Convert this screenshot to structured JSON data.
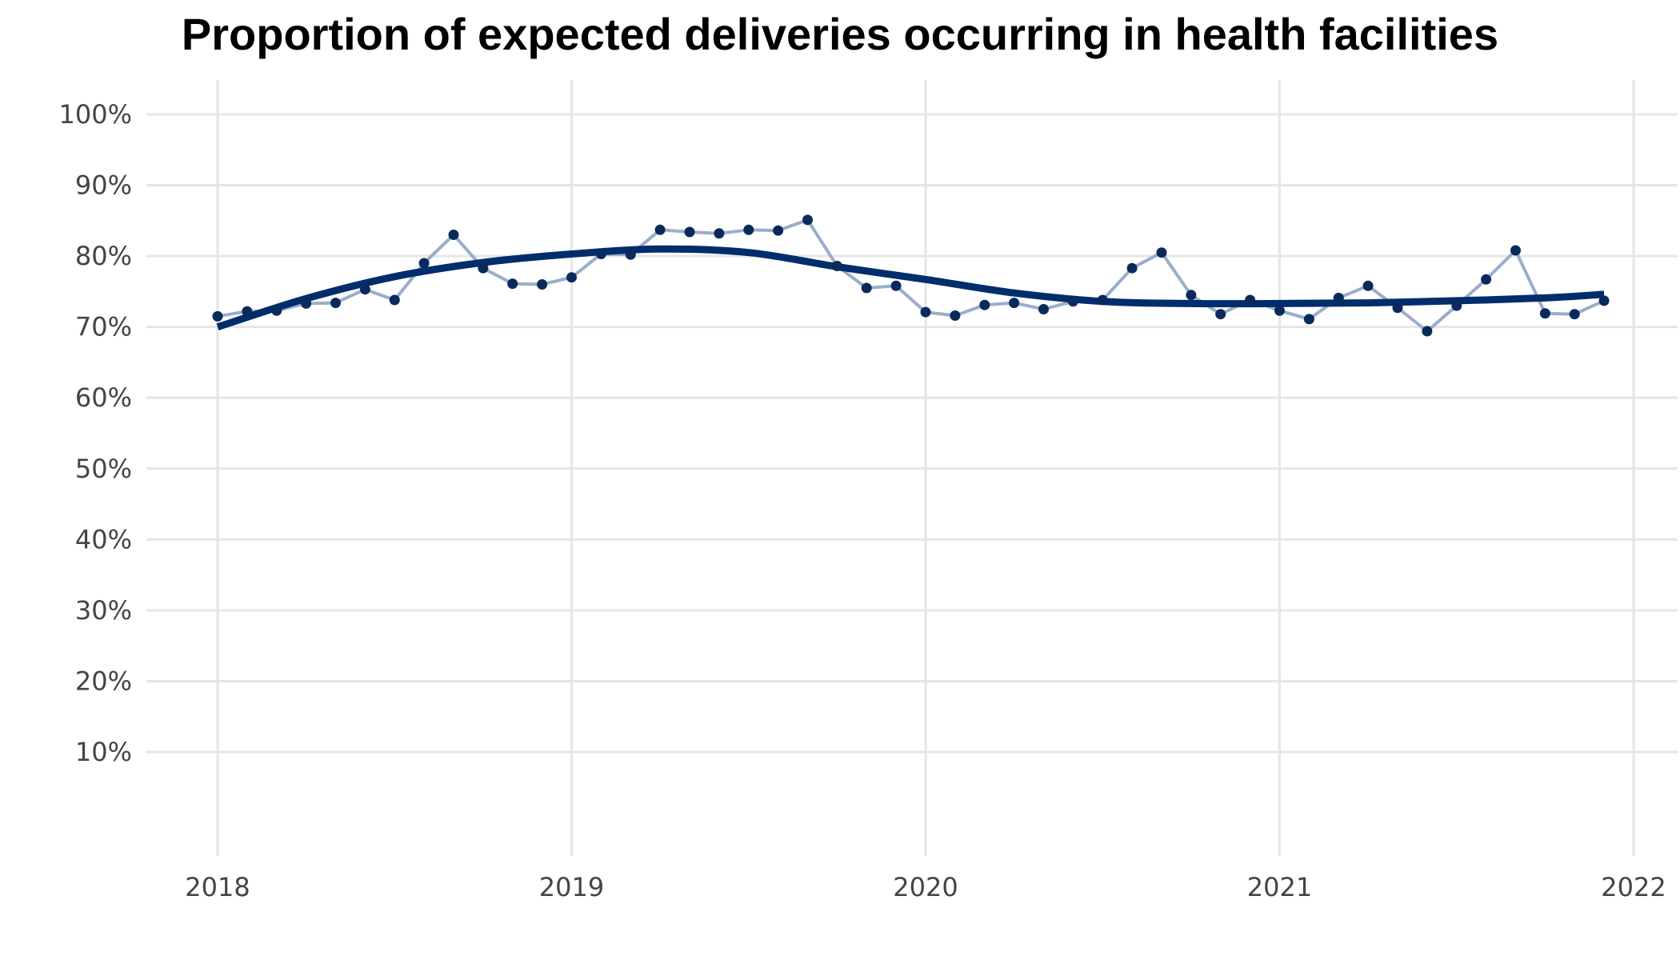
{
  "chart_data": {
    "type": "line",
    "title": "Proportion of expected deliveries occurring in health facilities",
    "xlabel": "",
    "ylabel": "",
    "x_ticks": [
      "2018",
      "2019",
      "2020",
      "2021",
      "2022"
    ],
    "xlim": [
      2018,
      2022
    ],
    "y_ticks": [
      "10%",
      "20%",
      "30%",
      "40%",
      "50%",
      "60%",
      "70%",
      "80%",
      "90%",
      "100%"
    ],
    "ylim": [
      0,
      105
    ],
    "grid": true,
    "legend": "none",
    "series": [
      {
        "x": [
          "2018-01",
          "2018-02",
          "2018-03",
          "2018-04",
          "2018-05",
          "2018-06",
          "2018-07",
          "2018-08",
          "2018-09",
          "2018-10",
          "2018-11",
          "2018-12",
          "2019-01",
          "2019-02",
          "2019-03",
          "2019-04",
          "2019-05",
          "2019-06",
          "2019-07",
          "2019-08",
          "2019-09",
          "2019-10",
          "2019-11",
          "2019-12",
          "2020-01",
          "2020-02",
          "2020-03",
          "2020-04",
          "2020-05",
          "2020-06",
          "2020-07",
          "2020-08",
          "2020-09",
          "2020-10",
          "2020-11",
          "2020-12",
          "2021-01",
          "2021-02",
          "2021-03",
          "2021-04",
          "2021-05",
          "2021-06",
          "2021-07",
          "2021-08",
          "2021-09",
          "2021-10",
          "2021-11",
          "2021-12"
        ],
        "values": [
          71.5,
          72.2,
          72.3,
          73.3,
          73.4,
          75.3,
          73.8,
          79.0,
          83.0,
          78.3,
          76.1,
          76.0,
          77.0,
          80.3,
          80.2,
          83.7,
          83.4,
          83.2,
          83.7,
          83.6,
          85.1,
          78.6,
          75.5,
          75.8,
          72.1,
          71.6,
          73.1,
          73.4,
          72.5,
          73.6,
          73.8,
          78.3,
          80.5,
          74.5,
          71.8,
          73.8,
          72.3,
          71.1,
          74.1,
          75.8,
          72.7,
          69.4,
          73.0,
          76.7,
          80.8,
          71.9,
          71.8,
          73.7
        ],
        "color": "#99AECA",
        "marker_color": "#0A2A5C"
      },
      {
        "x": [
          "2018-01",
          "2018-04",
          "2018-07",
          "2018-10",
          "2019-01",
          "2019-04",
          "2019-07",
          "2019-10",
          "2020-01",
          "2020-04",
          "2020-07",
          "2020-10",
          "2021-01",
          "2021-04",
          "2021-07",
          "2021-10",
          "2021-12"
        ],
        "values": [
          70.0,
          74.0,
          77.1,
          79.1,
          80.3,
          81.0,
          80.5,
          78.5,
          76.7,
          74.8,
          73.6,
          73.3,
          73.3,
          73.4,
          73.7,
          74.1,
          74.6
        ],
        "color": "#002D6B"
      }
    ]
  }
}
